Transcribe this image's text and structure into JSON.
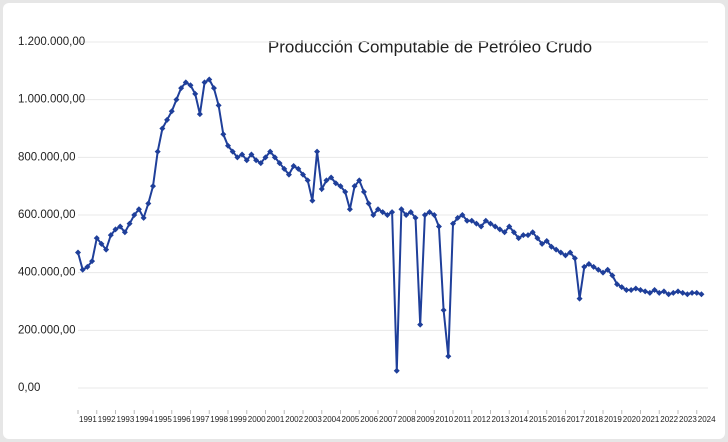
{
  "chart_data": {
    "type": "line",
    "title": "Producción Computable de Petróleo Crudo",
    "color": "#1f3f9a",
    "grid": true,
    "x": [
      1991,
      1991.25,
      1991.5,
      1991.75,
      1992,
      1992.25,
      1992.5,
      1992.75,
      1993,
      1993.25,
      1993.5,
      1993.75,
      1994,
      1994.25,
      1994.5,
      1994.75,
      1995,
      1995.25,
      1995.5,
      1995.75,
      1996,
      1996.25,
      1996.5,
      1996.75,
      1997,
      1997.25,
      1997.5,
      1997.75,
      1998,
      1998.25,
      1998.5,
      1998.75,
      1999,
      1999.25,
      1999.5,
      1999.75,
      2000,
      2000.25,
      2000.5,
      2000.75,
      2001,
      2001.25,
      2001.5,
      2001.75,
      2002,
      2002.25,
      2002.5,
      2002.75,
      2003,
      2003.25,
      2003.5,
      2003.75,
      2004,
      2004.25,
      2004.5,
      2004.75,
      2005,
      2005.25,
      2005.5,
      2005.75,
      2006,
      2006.25,
      2006.5,
      2006.75,
      2007,
      2007.25,
      2007.5,
      2007.75,
      2008,
      2008.25,
      2008.5,
      2008.75,
      2009,
      2009.25,
      2009.5,
      2009.75,
      2010,
      2010.25,
      2010.5,
      2010.75,
      2011,
      2011.25,
      2011.5,
      2011.75,
      2012,
      2012.25,
      2012.5,
      2012.75,
      2013,
      2013.25,
      2013.5,
      2013.75,
      2014,
      2014.25,
      2014.5,
      2014.75,
      2015,
      2015.25,
      2015.5,
      2015.75,
      2016,
      2016.25,
      2016.5,
      2016.75,
      2017,
      2017.25,
      2017.5,
      2017.75,
      2018,
      2018.25,
      2018.5,
      2018.75,
      2019,
      2019.25,
      2019.5,
      2019.75,
      2020,
      2020.25,
      2020.5,
      2020.75,
      2021,
      2021.25,
      2021.5,
      2021.75,
      2022,
      2022.25,
      2022.5,
      2022.75,
      2023,
      2023.25,
      2023.5,
      2023.75,
      2024,
      2024.25
    ],
    "values": [
      470000,
      410000,
      420000,
      440000,
      520000,
      500000,
      480000,
      530000,
      550000,
      560000,
      540000,
      570000,
      600000,
      620000,
      590000,
      640000,
      700000,
      820000,
      900000,
      930000,
      960000,
      1000000,
      1040000,
      1060000,
      1050000,
      1020000,
      950000,
      1060000,
      1070000,
      1040000,
      980000,
      880000,
      840000,
      820000,
      800000,
      810000,
      790000,
      810000,
      790000,
      780000,
      800000,
      820000,
      800000,
      780000,
      760000,
      740000,
      770000,
      760000,
      740000,
      720000,
      650000,
      820000,
      690000,
      720000,
      730000,
      710000,
      700000,
      680000,
      620000,
      700000,
      720000,
      680000,
      640000,
      600000,
      620000,
      610000,
      600000,
      610000,
      60000,
      620000,
      600000,
      610000,
      590000,
      220000,
      600000,
      610000,
      600000,
      560000,
      270000,
      110000,
      570000,
      590000,
      600000,
      580000,
      580000,
      570000,
      560000,
      580000,
      570000,
      560000,
      550000,
      540000,
      560000,
      540000,
      520000,
      530000,
      530000,
      540000,
      520000,
      500000,
      510000,
      490000,
      480000,
      470000,
      460000,
      470000,
      450000,
      310000,
      420000,
      430000,
      420000,
      410000,
      400000,
      410000,
      390000,
      360000,
      350000,
      340000,
      340000,
      345000,
      340000,
      335000,
      330000,
      340000,
      330000,
      335000,
      325000,
      330000,
      335000,
      330000,
      325000,
      330000,
      330000,
      325000
    ],
    "xlim": [
      1991,
      2024.6
    ],
    "xticks": [
      1991,
      1992,
      1993,
      1994,
      1995,
      1996,
      1997,
      1998,
      1999,
      2000,
      2001,
      2002,
      2003,
      2004,
      2005,
      2006,
      2007,
      2008,
      2009,
      2010,
      2011,
      2012,
      2013,
      2014,
      2015,
      2016,
      2017,
      2018,
      2019,
      2020,
      2021,
      2022,
      2023,
      2024
    ],
    "ylim": [
      0,
      1200000
    ],
    "yticks": [
      {
        "value": 0,
        "label": "0,00"
      },
      {
        "value": 200000,
        "label": "200.000,00"
      },
      {
        "value": 400000,
        "label": "400.000,00"
      },
      {
        "value": 600000,
        "label": "600.000,00"
      },
      {
        "value": 800000,
        "label": "800.000,00"
      },
      {
        "value": 1000000,
        "label": "1.000.000,00"
      },
      {
        "value": 1200000,
        "label": "1.200.000,00"
      }
    ]
  }
}
